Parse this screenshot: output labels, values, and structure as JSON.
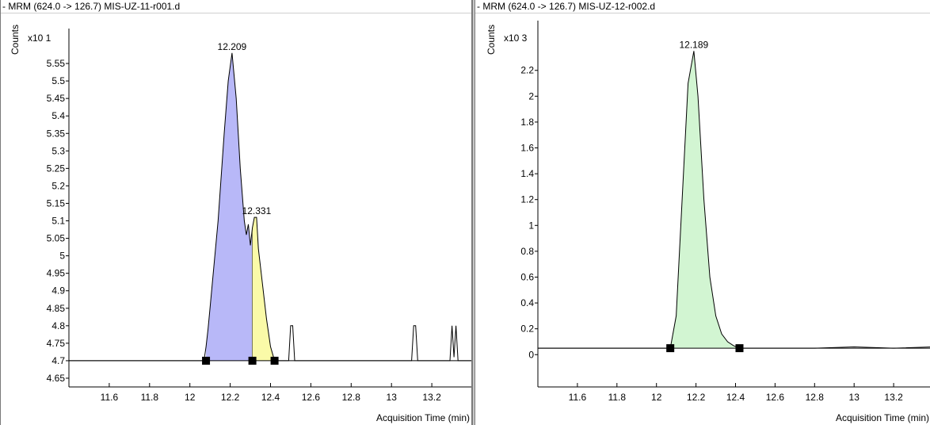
{
  "panes": [
    {
      "title": "- MRM (624.0 -> 126.7) MIS-UZ-11-r001.d",
      "counts_label": "Counts",
      "scale_label": "x10 1",
      "xlabel": "Acquisition Time (min)",
      "peak_labels": [
        "12.209",
        "12.331"
      ],
      "peak1_color": "#b8b8f8",
      "peak2_color": "#fafaa8"
    },
    {
      "title": "- MRM (624.0 -> 126.7) MIS-UZ-12-r002.d",
      "counts_label": "Counts",
      "scale_label": "x10 3",
      "xlabel": "Acquisition Time (min)",
      "peak_labels": [
        "12.189"
      ],
      "peak1_color": "#d2f5d2"
    }
  ],
  "chart_data": [
    {
      "type": "line",
      "title": "- MRM (624.0 -> 126.7) MIS-UZ-11-r001.d",
      "xlabel": "Acquisition Time (min)",
      "ylabel": "Counts",
      "y_multiplier": "x10 1",
      "xlim": [
        11.4,
        13.4
      ],
      "ylim": [
        4.625,
        5.6
      ],
      "x_ticks": [
        "11.6",
        "11.8",
        "12",
        "12.2",
        "12.4",
        "12.6",
        "12.8",
        "13",
        "13.2"
      ],
      "y_ticks": [
        "5.55",
        "5.5",
        "5.45",
        "5.4",
        "5.35",
        "5.3",
        "5.25",
        "5.2",
        "5.15",
        "5.1",
        "5.05",
        "5",
        "4.95",
        "4.9",
        "4.85",
        "4.8",
        "4.75",
        "4.7",
        "4.65"
      ],
      "baseline": 4.7,
      "series": [
        {
          "x": [
            11.4,
            12.07,
            12.08,
            12.09,
            12.1,
            12.14,
            12.17,
            12.19,
            12.209,
            12.23,
            12.25,
            12.27,
            12.28,
            12.29,
            12.3,
            12.31,
            12.32,
            12.331,
            12.34,
            12.36,
            12.38,
            12.4,
            12.42,
            12.49,
            12.5,
            12.51,
            12.52,
            13.1,
            13.11,
            13.12,
            13.13,
            13.29,
            13.3,
            13.31,
            13.32,
            13.33,
            13.34,
            13.4
          ],
          "y": [
            4.7,
            4.7,
            4.74,
            4.79,
            4.85,
            5.1,
            5.35,
            5.5,
            5.58,
            5.45,
            5.25,
            5.1,
            5.06,
            5.09,
            5.03,
            5.08,
            5.11,
            5.11,
            5.02,
            4.92,
            4.82,
            4.74,
            4.7,
            4.7,
            4.8,
            4.8,
            4.7,
            4.7,
            4.8,
            4.8,
            4.7,
            4.7,
            4.8,
            4.71,
            4.8,
            4.7,
            4.7,
            4.7
          ]
        }
      ],
      "peaks": [
        {
          "label": "12.209",
          "start": 12.08,
          "end": 12.31,
          "fill": "#b8b8f8"
        },
        {
          "label": "12.331",
          "start": 12.31,
          "end": 12.42,
          "fill": "#fafaa8"
        }
      ],
      "integration_markers": [
        12.08,
        12.31,
        12.42
      ]
    },
    {
      "type": "line",
      "title": "- MRM (624.0 -> 126.7) MIS-UZ-12-r002.d",
      "xlabel": "Acquisition Time (min)",
      "ylabel": "Counts",
      "y_multiplier": "x10 3",
      "xlim": [
        11.4,
        13.4
      ],
      "ylim": [
        -0.25,
        2.45
      ],
      "x_ticks": [
        "11.6",
        "11.8",
        "12",
        "12.2",
        "12.4",
        "12.6",
        "12.8",
        "13",
        "13.2"
      ],
      "y_ticks": [
        "2.2",
        "2",
        "1.8",
        "1.6",
        "1.4",
        "1.2",
        "1",
        "0.8",
        "0.6",
        "0.4",
        "0.2",
        "0"
      ],
      "baseline": 0.05,
      "series": [
        {
          "x": [
            11.4,
            12.07,
            12.1,
            12.13,
            12.16,
            12.189,
            12.21,
            12.24,
            12.27,
            12.3,
            12.33,
            12.36,
            12.39,
            12.42,
            12.6,
            12.8,
            13.0,
            13.2,
            13.4
          ],
          "y": [
            0.05,
            0.05,
            0.3,
            1.2,
            2.1,
            2.35,
            2.0,
            1.2,
            0.6,
            0.3,
            0.16,
            0.1,
            0.07,
            0.05,
            0.05,
            0.05,
            0.06,
            0.05,
            0.06
          ]
        }
      ],
      "peaks": [
        {
          "label": "12.189",
          "start": 12.07,
          "end": 12.42,
          "fill": "#d2f5d2"
        }
      ],
      "integration_markers": [
        12.07,
        12.42
      ]
    }
  ]
}
